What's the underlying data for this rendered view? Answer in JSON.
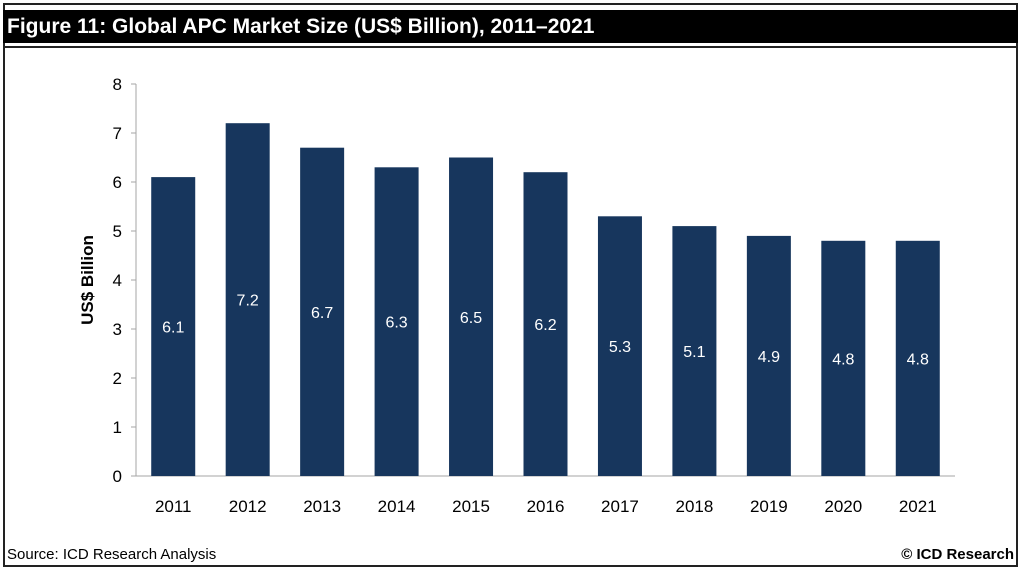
{
  "chart_data": {
    "type": "bar",
    "title": "Figure 11: Global APC Market Size (US$ Billion), 2011–2021",
    "categories": [
      "2011",
      "2012",
      "2013",
      "2014",
      "2015",
      "2016",
      "2017",
      "2018",
      "2019",
      "2020",
      "2021"
    ],
    "values": [
      6.1,
      7.2,
      6.7,
      6.3,
      6.5,
      6.2,
      5.3,
      5.1,
      4.9,
      4.8,
      4.8
    ],
    "data_labels": [
      "6.1",
      "7.2",
      "6.7",
      "6.3",
      "6.5",
      "6.2",
      "5.3",
      "5.1",
      "4.9",
      "4.8",
      "4.8"
    ],
    "xlabel": "",
    "ylabel": "US$ Billion",
    "ylim": [
      0,
      8
    ],
    "yticks": [
      0,
      1,
      2,
      3,
      4,
      5,
      6,
      7,
      8
    ],
    "grid": false,
    "bar_color": "#17365d",
    "label_color": "#ffffff"
  },
  "footer": {
    "source": "Source: ICD Research Analysis",
    "copyright": "© ICD Research"
  }
}
